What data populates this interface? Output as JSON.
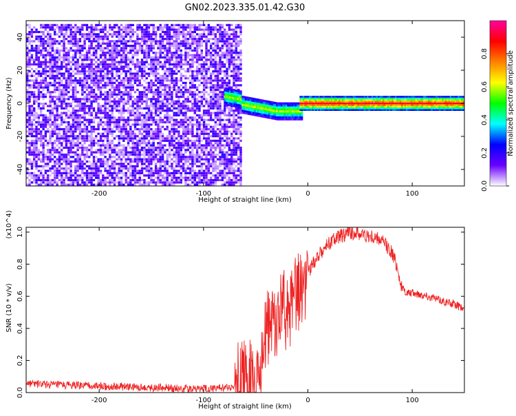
{
  "title": "GN02.2023.335.01.42.G30",
  "chart_data": [
    {
      "type": "heatmap",
      "xlabel": "Height of straight line (km)",
      "ylabel": "Frequency (Hz)",
      "xlim": [
        -270,
        150
      ],
      "ylim": [
        -50,
        50
      ],
      "xticks": [
        -200,
        -100,
        0,
        100
      ],
      "yticks": [
        -40,
        -20,
        0,
        20,
        40
      ],
      "colorbar": {
        "label": "Normalized spectral amplitude",
        "range": [
          0.0,
          1.0
        ],
        "ticks": [
          "0.0",
          "0.2",
          "0.4",
          "0.6",
          "0.8"
        ],
        "colormap": [
          "#ffffff",
          "#6a00ff",
          "#0000ff",
          "#00ffff",
          "#00ff00",
          "#ffff00",
          "#ff8000",
          "#ff0000",
          "#ff00a0"
        ]
      },
      "regions": [
        {
          "x_range": [
            -270,
            -65
          ],
          "frequency_range": [
            -50,
            47
          ],
          "amplitude": 0.15,
          "note_colour": "#6a00ff"
        },
        {
          "x_range": [
            -65,
            150
          ],
          "frequency_center": 0,
          "amplitude": 0.9,
          "note_colour": "#ff0000"
        }
      ]
    },
    {
      "type": "line",
      "xlabel": "Height of straight line (km)",
      "ylabel": "SNR (10 * v/v)",
      "y_multiplier": "(x10^4)",
      "xlim": [
        -270,
        150
      ],
      "ylim": [
        0,
        1.03
      ],
      "xticks": [
        -200,
        -100,
        0,
        100
      ],
      "yticks": [
        "0.0",
        "0.2",
        "0.4",
        "0.6",
        "0.8",
        "1.0"
      ],
      "color": "#ee2222",
      "series": [
        {
          "x": [
            -270,
            -250,
            -230,
            -200,
            -170,
            -140,
            -120,
            -100,
            -80,
            -70,
            -65,
            -60,
            -55,
            -50,
            -45,
            -40,
            -35,
            -30,
            -25,
            -20,
            -15,
            -10,
            -5,
            0,
            10,
            20,
            30,
            40,
            50,
            60,
            70,
            80,
            85,
            90,
            95,
            100,
            110,
            120,
            130,
            140,
            150
          ],
          "y": [
            0.06,
            0.05,
            0.045,
            0.04,
            0.035,
            0.03,
            0.025,
            0.025,
            0.03,
            0.04,
            0.08,
            0.15,
            0.1,
            0.05,
            0.2,
            0.35,
            0.45,
            0.4,
            0.55,
            0.45,
            0.6,
            0.62,
            0.68,
            0.75,
            0.85,
            0.93,
            0.97,
            1.0,
            0.99,
            0.97,
            0.95,
            0.88,
            0.8,
            0.65,
            0.62,
            0.62,
            0.61,
            0.59,
            0.57,
            0.55,
            0.52
          ]
        }
      ]
    }
  ]
}
